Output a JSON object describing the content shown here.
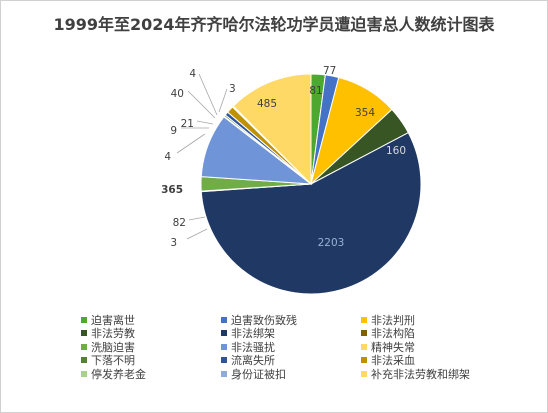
{
  "chart_data": {
    "type": "pie",
    "title": "1999年至2024年齐齐哈尔法轮功学员遭迫害总人数统计图表",
    "legend_position": "bottom",
    "slices": [
      {
        "name": "迫害离世",
        "value": 81,
        "color": "#4EA72E"
      },
      {
        "name": "迫害致伤致残",
        "value": 77,
        "color": "#4472C4"
      },
      {
        "name": "非法判刑",
        "value": 354,
        "color": "#FFC000"
      },
      {
        "name": "非法劳教",
        "value": 160,
        "color": "#375623"
      },
      {
        "name": "非法绑架",
        "value": 2203,
        "color": "#203864"
      },
      {
        "name": "非法构陷",
        "value": 3,
        "color": "#806000"
      },
      {
        "name": "洗脑迫害",
        "value": 82,
        "color": "#70AD47"
      },
      {
        "name": "非法骚扰",
        "value": 365,
        "color": "#6F95D8"
      },
      {
        "name": "精神失常",
        "value": 4,
        "color": "#FFD966"
      },
      {
        "name": "下落不明",
        "value": 9,
        "color": "#548235"
      },
      {
        "name": "流离失所",
        "value": 21,
        "color": "#2F5597"
      },
      {
        "name": "非法采血",
        "value": 40,
        "color": "#BF9000"
      },
      {
        "name": "停发养老金",
        "value": 4,
        "color": "#A9D18E"
      },
      {
        "name": "身份证被扣",
        "value": 3,
        "color": "#8FAADC"
      },
      {
        "name": "补充非法劳教和绑架",
        "value": 485,
        "color": "#FFD966"
      }
    ]
  }
}
